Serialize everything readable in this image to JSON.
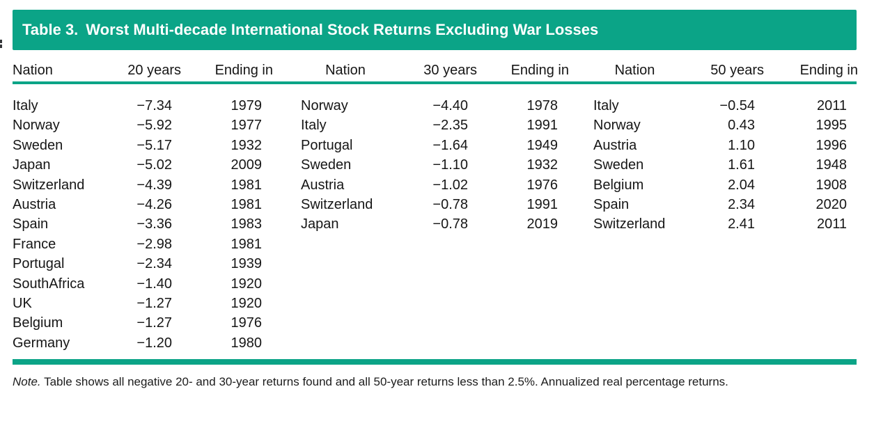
{
  "title": {
    "prefix": "Table 3.",
    "text": "Worst Multi-decade International Stock Returns Excluding War Losses"
  },
  "colors": {
    "accent": "#0ba487",
    "title_text": "#ffffff",
    "body_text": "#161616"
  },
  "table": {
    "column_headers": [
      "Nation",
      "20 years",
      "Ending in",
      "Nation",
      "30 years",
      "Ending in",
      "Nation",
      "50 years",
      "Ending in"
    ],
    "groups": [
      {
        "period_label": "20 years",
        "rows": [
          {
            "nation": "Italy",
            "return": "−7.34",
            "ending_in": "1979"
          },
          {
            "nation": "Norway",
            "return": "−5.92",
            "ending_in": "1977"
          },
          {
            "nation": "Sweden",
            "return": "−5.17",
            "ending_in": "1932"
          },
          {
            "nation": "Japan",
            "return": "−5.02",
            "ending_in": "2009"
          },
          {
            "nation": "Switzerland",
            "return": "−4.39",
            "ending_in": "1981"
          },
          {
            "nation": "Austria",
            "return": "−4.26",
            "ending_in": "1981"
          },
          {
            "nation": "Spain",
            "return": "−3.36",
            "ending_in": "1983"
          },
          {
            "nation": "France",
            "return": "−2.98",
            "ending_in": "1981"
          },
          {
            "nation": "Portugal",
            "return": "−2.34",
            "ending_in": "1939"
          },
          {
            "nation": "SouthAfrica",
            "return": "−1.40",
            "ending_in": "1920"
          },
          {
            "nation": "UK",
            "return": "−1.27",
            "ending_in": "1920"
          },
          {
            "nation": "Belgium",
            "return": "−1.27",
            "ending_in": "1976"
          },
          {
            "nation": "Germany",
            "return": "−1.20",
            "ending_in": "1980"
          }
        ]
      },
      {
        "period_label": "30 years",
        "rows": [
          {
            "nation": "Norway",
            "return": "−4.40",
            "ending_in": "1978"
          },
          {
            "nation": "Italy",
            "return": "−2.35",
            "ending_in": "1991"
          },
          {
            "nation": "Portugal",
            "return": "−1.64",
            "ending_in": "1949"
          },
          {
            "nation": "Sweden",
            "return": "−1.10",
            "ending_in": "1932"
          },
          {
            "nation": "Austria",
            "return": "−1.02",
            "ending_in": "1976"
          },
          {
            "nation": "Switzerland",
            "return": "−0.78",
            "ending_in": "1991"
          },
          {
            "nation": "Japan",
            "return": "−0.78",
            "ending_in": "2019"
          }
        ]
      },
      {
        "period_label": "50 years",
        "rows": [
          {
            "nation": "Italy",
            "return": "−0.54",
            "ending_in": "2011"
          },
          {
            "nation": "Norway",
            "return": "0.43",
            "ending_in": "1995"
          },
          {
            "nation": "Austria",
            "return": "1.10",
            "ending_in": "1996"
          },
          {
            "nation": "Sweden",
            "return": "1.61",
            "ending_in": "1948"
          },
          {
            "nation": "Belgium",
            "return": "2.04",
            "ending_in": "1908"
          },
          {
            "nation": "Spain",
            "return": "2.34",
            "ending_in": "2020"
          },
          {
            "nation": "Switzerland",
            "return": "2.41",
            "ending_in": "2011"
          }
        ]
      }
    ]
  },
  "note": {
    "label": "Note.",
    "text": "Table shows all negative 20- and 30-year returns found and all 50-year returns less than 2.5%. Annualized real percentage returns."
  }
}
